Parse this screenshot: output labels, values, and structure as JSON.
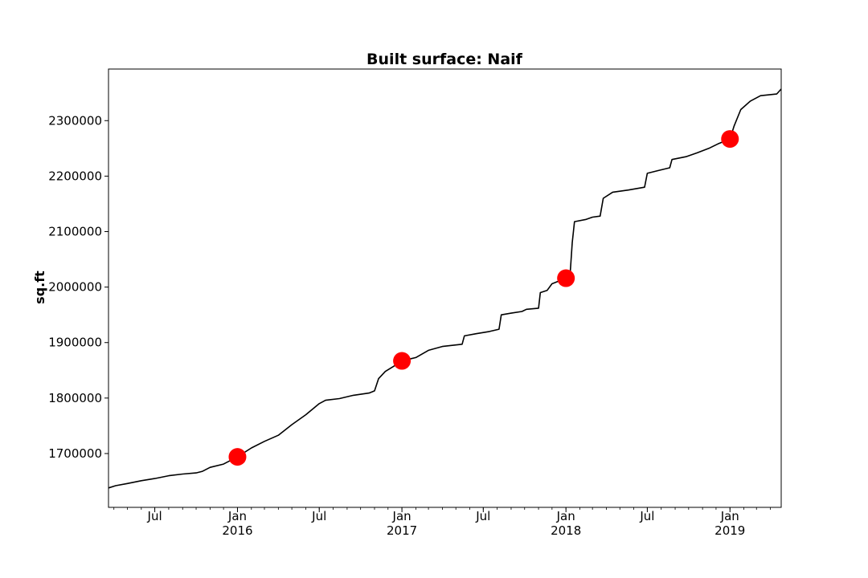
{
  "chart_data": {
    "type": "line",
    "title": "Built surface: Naif",
    "xlabel": "",
    "ylabel": "sq.ft",
    "x_range": [
      "2015-03-20",
      "2019-04-25"
    ],
    "ylim": [
      1603000,
      2393000
    ],
    "grid": false,
    "legend": "none",
    "y_ticks": [
      1700000,
      1800000,
      1900000,
      2000000,
      2100000,
      2200000,
      2300000
    ],
    "x_ticks": [
      {
        "date": "2015-07-01",
        "label": "Jul",
        "sublabel": ""
      },
      {
        "date": "2016-01-01",
        "label": "Jan",
        "sublabel": "2016"
      },
      {
        "date": "2016-07-01",
        "label": "Jul",
        "sublabel": ""
      },
      {
        "date": "2017-01-01",
        "label": "Jan",
        "sublabel": "2017"
      },
      {
        "date": "2017-07-01",
        "label": "Jul",
        "sublabel": ""
      },
      {
        "date": "2018-01-01",
        "label": "Jan",
        "sublabel": "2018"
      },
      {
        "date": "2018-07-01",
        "label": "Jul",
        "sublabel": ""
      },
      {
        "date": "2019-01-01",
        "label": "Jan",
        "sublabel": "2019"
      }
    ],
    "series": [
      {
        "color": "#000000",
        "points": [
          [
            "2015-03-20",
            1638000
          ],
          [
            "2015-04-05",
            1642000
          ],
          [
            "2015-05-01",
            1646000
          ],
          [
            "2015-06-01",
            1651000
          ],
          [
            "2015-07-01",
            1655000
          ],
          [
            "2015-08-01",
            1660000
          ],
          [
            "2015-09-01",
            1663000
          ],
          [
            "2015-10-01",
            1665000
          ],
          [
            "2015-10-15",
            1668000
          ],
          [
            "2015-11-01",
            1675000
          ],
          [
            "2015-12-01",
            1681000
          ],
          [
            "2016-01-01",
            1694000
          ],
          [
            "2016-02-01",
            1710000
          ],
          [
            "2016-03-01",
            1722000
          ],
          [
            "2016-04-01",
            1733000
          ],
          [
            "2016-05-01",
            1752000
          ],
          [
            "2016-06-01",
            1770000
          ],
          [
            "2016-07-01",
            1790000
          ],
          [
            "2016-07-15",
            1796000
          ],
          [
            "2016-08-15",
            1799000
          ],
          [
            "2016-09-15",
            1805000
          ],
          [
            "2016-10-20",
            1809000
          ],
          [
            "2016-11-01",
            1813000
          ],
          [
            "2016-11-10",
            1835000
          ],
          [
            "2016-11-25",
            1848000
          ],
          [
            "2016-12-15",
            1858000
          ],
          [
            "2017-01-01",
            1867000
          ],
          [
            "2017-02-01",
            1873000
          ],
          [
            "2017-03-01",
            1886000
          ],
          [
            "2017-04-01",
            1893000
          ],
          [
            "2017-05-15",
            1897000
          ],
          [
            "2017-05-20",
            1912000
          ],
          [
            "2017-06-15",
            1916000
          ],
          [
            "2017-07-15",
            1920000
          ],
          [
            "2017-08-05",
            1924000
          ],
          [
            "2017-08-10",
            1950000
          ],
          [
            "2017-09-01",
            1953000
          ],
          [
            "2017-09-25",
            1956000
          ],
          [
            "2017-10-05",
            1960000
          ],
          [
            "2017-11-01",
            1962000
          ],
          [
            "2017-11-05",
            1990000
          ],
          [
            "2017-11-20",
            1994000
          ],
          [
            "2017-12-01",
            2006000
          ],
          [
            "2017-12-20",
            2012000
          ],
          [
            "2018-01-01",
            2016000
          ],
          [
            "2018-01-10",
            2020000
          ],
          [
            "2018-01-15",
            2080000
          ],
          [
            "2018-01-20",
            2118000
          ],
          [
            "2018-02-15",
            2122000
          ],
          [
            "2018-03-01",
            2126000
          ],
          [
            "2018-03-18",
            2128000
          ],
          [
            "2018-03-25",
            2160000
          ],
          [
            "2018-04-15",
            2171000
          ],
          [
            "2018-05-20",
            2175000
          ],
          [
            "2018-06-25",
            2180000
          ],
          [
            "2018-07-01",
            2205000
          ],
          [
            "2018-07-25",
            2210000
          ],
          [
            "2018-08-20",
            2215000
          ],
          [
            "2018-08-25",
            2230000
          ],
          [
            "2018-09-25",
            2235000
          ],
          [
            "2018-10-20",
            2242000
          ],
          [
            "2018-11-15",
            2250000
          ],
          [
            "2018-12-05",
            2258000
          ],
          [
            "2019-01-01",
            2267000
          ],
          [
            "2019-01-10",
            2290000
          ],
          [
            "2019-01-25",
            2320000
          ],
          [
            "2019-02-15",
            2335000
          ],
          [
            "2019-03-10",
            2345000
          ],
          [
            "2019-04-15",
            2348000
          ],
          [
            "2019-04-25",
            2357000
          ]
        ]
      }
    ],
    "markers": {
      "color": "#ff0000",
      "points": [
        [
          "2016-01-01",
          1694000
        ],
        [
          "2017-01-01",
          1867000
        ],
        [
          "2018-01-01",
          2016000
        ],
        [
          "2019-01-01",
          2267000
        ]
      ]
    }
  }
}
